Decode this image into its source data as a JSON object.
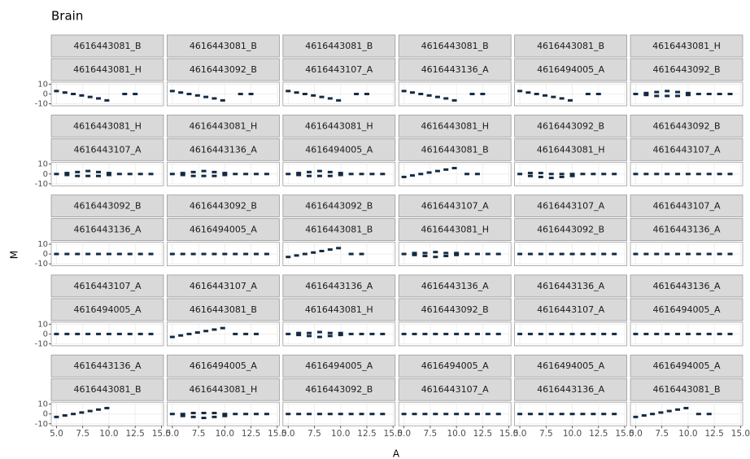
{
  "chart_data": {
    "type": "scatter",
    "title": "Brain",
    "x_label": "A",
    "y_label": "M",
    "xlim": [
      4.5,
      15.2
    ],
    "ylim": [
      -12,
      12
    ],
    "xticks": [
      {
        "value": 5,
        "label": "5.0"
      },
      {
        "value": 7.5,
        "label": "7.5"
      },
      {
        "value": 10,
        "label": "10.0"
      },
      {
        "value": 12.5,
        "label": "12.5"
      },
      {
        "value": 15,
        "label": "15.0"
      }
    ],
    "yticks": [
      -10,
      0,
      10
    ],
    "color": "#132b43",
    "grid": true,
    "panels": [
      {
        "strips": [
          "4616443081_B",
          "4616443081_H"
        ],
        "x": [
          5,
          5.8,
          6.6,
          7.4,
          8.2,
          9,
          9.8,
          11.5,
          12.5
        ],
        "y": [
          3,
          1.5,
          0,
          -1.5,
          -3,
          -4.5,
          -6.5,
          0,
          0
        ]
      },
      {
        "strips": [
          "4616443081_B",
          "4616443092_B"
        ],
        "x": [
          5,
          5.8,
          6.6,
          7.4,
          8.2,
          9,
          9.8,
          11.5,
          12.5
        ],
        "y": [
          3,
          1.5,
          0,
          -1.5,
          -3,
          -4.5,
          -6.5,
          0,
          0
        ]
      },
      {
        "strips": [
          "4616443081_B",
          "4616443107_A"
        ],
        "x": [
          5,
          5.8,
          6.6,
          7.4,
          8.2,
          9,
          9.8,
          11.5,
          12.5
        ],
        "y": [
          3,
          1.5,
          0,
          -1.5,
          -3,
          -4.5,
          -6.5,
          0,
          0
        ]
      },
      {
        "strips": [
          "4616443081_B",
          "4616443136_A"
        ],
        "x": [
          5,
          5.8,
          6.6,
          7.4,
          8.2,
          9,
          9.8,
          11.5,
          12.5
        ],
        "y": [
          3,
          1.5,
          0,
          -1.5,
          -3,
          -4.5,
          -6.5,
          0,
          0
        ]
      },
      {
        "strips": [
          "4616443081_B",
          "4616494005_A"
        ],
        "x": [
          5,
          5.8,
          6.6,
          7.4,
          8.2,
          9,
          9.8,
          11.5,
          12.5
        ],
        "y": [
          3,
          1.5,
          0,
          -1.5,
          -3,
          -4.5,
          -6.5,
          0,
          0
        ]
      },
      {
        "strips": [
          "4616443081_H",
          "4616443092_B"
        ],
        "x": [
          5,
          6,
          7,
          8,
          9,
          10,
          11,
          12,
          13,
          14,
          6,
          7,
          8,
          9,
          10
        ],
        "y": [
          0,
          1,
          2,
          3,
          2,
          1,
          0,
          0,
          0,
          0,
          -1,
          -2,
          -2,
          -2,
          -1
        ]
      },
      {
        "strips": [
          "4616443081_H",
          "4616443107_A"
        ],
        "x": [
          5,
          6,
          7,
          8,
          9,
          10,
          11,
          12,
          13,
          14,
          6,
          7,
          8,
          9,
          10
        ],
        "y": [
          0,
          1,
          2,
          3,
          2,
          1,
          0,
          0,
          0,
          0,
          -1,
          -2,
          -2,
          -2,
          -1
        ]
      },
      {
        "strips": [
          "4616443081_H",
          "4616443136_A"
        ],
        "x": [
          5,
          6,
          7,
          8,
          9,
          10,
          11,
          12,
          13,
          14,
          6,
          7,
          8,
          9,
          10
        ],
        "y": [
          0,
          1,
          2,
          3,
          2,
          1,
          0,
          0,
          0,
          0,
          -1,
          -2,
          -2,
          -2,
          -1
        ]
      },
      {
        "strips": [
          "4616443081_H",
          "4616494005_A"
        ],
        "x": [
          5,
          6,
          7,
          8,
          9,
          10,
          11,
          12,
          13,
          14,
          6,
          7,
          8,
          9,
          10
        ],
        "y": [
          0,
          1,
          2,
          3,
          2,
          1,
          0,
          0,
          0,
          0,
          -1,
          -2,
          -2,
          -2,
          -1
        ]
      },
      {
        "strips": [
          "4616443081_H",
          "4616443081_B"
        ],
        "x": [
          5,
          5.8,
          6.6,
          7.4,
          8.2,
          9,
          9.8,
          11,
          12
        ],
        "y": [
          -3,
          -1.5,
          0,
          1.5,
          3,
          4.5,
          6,
          0,
          0
        ]
      },
      {
        "strips": [
          "4616443092_B",
          "4616443081_H"
        ],
        "x": [
          5,
          6,
          7,
          8,
          9,
          10,
          11,
          12,
          13,
          14,
          6,
          7,
          8,
          9,
          10
        ],
        "y": [
          0,
          1,
          1,
          0,
          0,
          0,
          0,
          0,
          0,
          0,
          -2,
          -3,
          -4,
          -3,
          -2
        ]
      },
      {
        "strips": [
          "4616443092_B",
          "4616443107_A"
        ],
        "x": [
          5,
          6,
          7,
          8,
          9,
          10,
          11,
          12,
          13,
          14
        ],
        "y": [
          0,
          0,
          0,
          0,
          0,
          0,
          0,
          0,
          0,
          0
        ]
      },
      {
        "strips": [
          "4616443092_B",
          "4616443136_A"
        ],
        "x": [
          5,
          6,
          7,
          8,
          9,
          10,
          11,
          12,
          13,
          14
        ],
        "y": [
          0,
          0,
          0,
          0,
          0,
          0,
          0,
          0,
          0,
          0
        ]
      },
      {
        "strips": [
          "4616443092_B",
          "4616494005_A"
        ],
        "x": [
          5,
          6,
          7,
          8,
          9,
          10,
          11,
          12,
          13,
          14
        ],
        "y": [
          0,
          0,
          0,
          0,
          0,
          0,
          0,
          0,
          0,
          0
        ]
      },
      {
        "strips": [
          "4616443092_B",
          "4616443081_B"
        ],
        "x": [
          5,
          5.8,
          6.6,
          7.4,
          8.2,
          9,
          9.8,
          11,
          12
        ],
        "y": [
          -3,
          -1.5,
          0,
          1.5,
          3,
          4.5,
          6,
          0,
          0
        ]
      },
      {
        "strips": [
          "4616443107_A",
          "4616443081_H"
        ],
        "x": [
          5,
          6,
          7,
          8,
          9,
          10,
          11,
          12,
          13,
          14,
          6,
          7,
          8,
          9,
          10
        ],
        "y": [
          0,
          1,
          1,
          2,
          1,
          1,
          0,
          0,
          0,
          0,
          -1,
          -2,
          -3,
          -2,
          -1
        ]
      },
      {
        "strips": [
          "4616443107_A",
          "4616443092_B"
        ],
        "x": [
          5,
          6,
          7,
          8,
          9,
          10,
          11,
          12,
          13,
          14
        ],
        "y": [
          0,
          0,
          0,
          0,
          0,
          0,
          0,
          0,
          0,
          0
        ]
      },
      {
        "strips": [
          "4616443107_A",
          "4616443136_A"
        ],
        "x": [
          5,
          6,
          7,
          8,
          9,
          10,
          11,
          12,
          13,
          14
        ],
        "y": [
          0,
          0,
          0,
          0,
          0,
          0,
          0,
          0,
          0,
          0
        ]
      },
      {
        "strips": [
          "4616443107_A",
          "4616494005_A"
        ],
        "x": [
          5,
          6,
          7,
          8,
          9,
          10,
          11,
          12,
          13,
          14
        ],
        "y": [
          0,
          0,
          0,
          0,
          0,
          0,
          0,
          0,
          0,
          0
        ]
      },
      {
        "strips": [
          "4616443107_A",
          "4616443081_B"
        ],
        "x": [
          5,
          5.8,
          6.6,
          7.4,
          8.2,
          9,
          9.8,
          11,
          12,
          13
        ],
        "y": [
          -3,
          -1.5,
          0,
          1.5,
          3,
          4.5,
          6,
          0,
          0,
          0
        ]
      },
      {
        "strips": [
          "4616443136_A",
          "4616443081_H"
        ],
        "x": [
          5,
          6,
          7,
          8,
          9,
          10,
          11,
          12,
          13,
          14,
          6,
          7,
          8,
          9,
          10
        ],
        "y": [
          0,
          1,
          1,
          2,
          1,
          1,
          0,
          0,
          0,
          0,
          -1,
          -2,
          -3,
          -2,
          -1
        ]
      },
      {
        "strips": [
          "4616443136_A",
          "4616443092_B"
        ],
        "x": [
          5,
          6,
          7,
          8,
          9,
          10,
          11,
          12,
          13,
          14
        ],
        "y": [
          0,
          0,
          0,
          0,
          0,
          0,
          0,
          0,
          0,
          0
        ]
      },
      {
        "strips": [
          "4616443136_A",
          "4616443107_A"
        ],
        "x": [
          5,
          6,
          7,
          8,
          9,
          10,
          11,
          12,
          13,
          14
        ],
        "y": [
          0,
          0,
          0,
          0,
          0,
          0,
          0,
          0,
          0,
          0
        ]
      },
      {
        "strips": [
          "4616443136_A",
          "4616494005_A"
        ],
        "x": [
          5,
          6,
          7,
          8,
          9,
          10,
          11,
          12,
          13,
          14
        ],
        "y": [
          0,
          0,
          0,
          0,
          0,
          0,
          0,
          0,
          0,
          0
        ]
      },
      {
        "strips": [
          "4616443136_A",
          "4616443081_B"
        ],
        "x": [
          5,
          5.8,
          6.6,
          7.4,
          8.2,
          9,
          9.8
        ],
        "y": [
          -3,
          -1.5,
          0,
          1.5,
          3,
          4.5,
          6
        ]
      },
      {
        "strips": [
          "4616494005_A",
          "4616443081_H"
        ],
        "x": [
          5,
          6,
          7,
          8,
          9,
          10,
          11,
          12,
          13,
          14,
          6,
          7,
          8,
          9,
          10
        ],
        "y": [
          0,
          0,
          1,
          1,
          1,
          0,
          0,
          0,
          0,
          0,
          -2,
          -3,
          -4,
          -3,
          -2
        ]
      },
      {
        "strips": [
          "4616494005_A",
          "4616443092_B"
        ],
        "x": [
          5,
          6,
          7,
          8,
          9,
          10,
          11,
          12,
          13,
          14
        ],
        "y": [
          0,
          0,
          0,
          0,
          0,
          0,
          0,
          0,
          0,
          0
        ]
      },
      {
        "strips": [
          "4616494005_A",
          "4616443107_A"
        ],
        "x": [
          5,
          6,
          7,
          8,
          9,
          10,
          11,
          12,
          13,
          14
        ],
        "y": [
          0,
          0,
          0,
          0,
          0,
          0,
          0,
          0,
          0,
          0
        ]
      },
      {
        "strips": [
          "4616494005_A",
          "4616443136_A"
        ],
        "x": [
          5,
          6,
          7,
          8,
          9,
          10,
          11,
          12,
          13,
          14
        ],
        "y": [
          0,
          0,
          0,
          0,
          0,
          0,
          0,
          0,
          0,
          0
        ]
      },
      {
        "strips": [
          "4616494005_A",
          "4616443081_B"
        ],
        "x": [
          5,
          5.8,
          6.6,
          7.4,
          8.2,
          9,
          9.8,
          11,
          12
        ],
        "y": [
          -3,
          -1.5,
          0,
          1.5,
          3,
          4.5,
          6,
          0,
          0
        ]
      }
    ]
  }
}
